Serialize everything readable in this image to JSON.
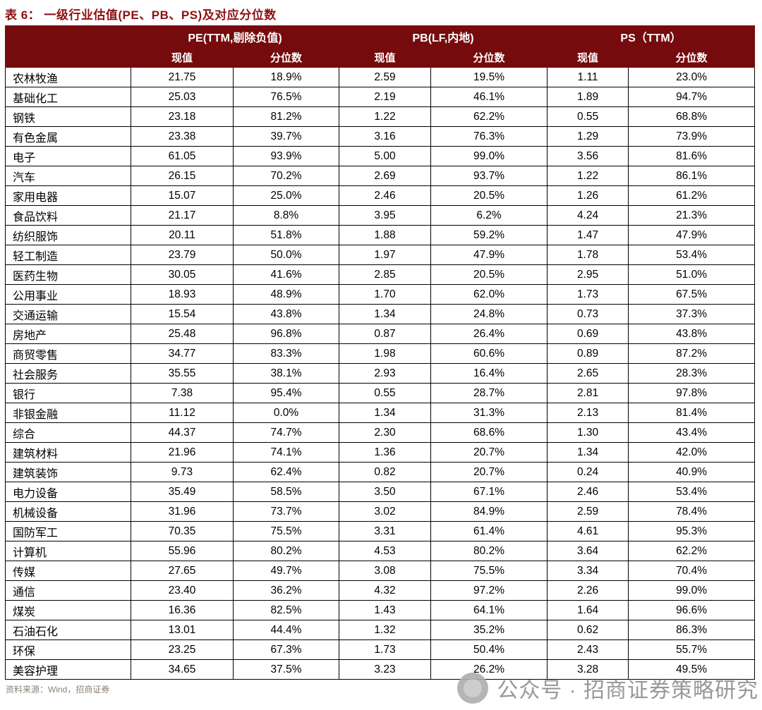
{
  "title": "表 6： 一级行业估值(PE、PB、PS)及对应分位数",
  "footer": "资料来源：Wind，招商证券",
  "watermark": "公众号 · 招商证券策略研究",
  "colors": {
    "title_red": "#8e1011",
    "header_bg": "#760b0d",
    "header_text": "#ffffff",
    "grid_border": "#000000"
  },
  "chart_data": {
    "type": "table",
    "title": "表 6： 一级行业估值(PE、PB、PS)及对应分位数",
    "group_headers": [
      "PE(TTM,剔除负值)",
      "PB(LF,内地)",
      "PS（TTM）"
    ],
    "sub_headers": [
      "现值",
      "分位数",
      "现值",
      "分位数",
      "现值",
      "分位数"
    ],
    "rows": [
      {
        "industry": "农林牧渔",
        "values": [
          "21.75",
          "18.9%",
          "2.59",
          "19.5%",
          "1.11",
          "23.0%"
        ]
      },
      {
        "industry": "基础化工",
        "values": [
          "25.03",
          "76.5%",
          "2.19",
          "46.1%",
          "1.89",
          "94.7%"
        ]
      },
      {
        "industry": "钢铁",
        "values": [
          "23.18",
          "81.2%",
          "1.22",
          "62.2%",
          "0.55",
          "68.8%"
        ]
      },
      {
        "industry": "有色金属",
        "values": [
          "23.38",
          "39.7%",
          "3.16",
          "76.3%",
          "1.29",
          "73.9%"
        ]
      },
      {
        "industry": "电子",
        "values": [
          "61.05",
          "93.9%",
          "5.00",
          "99.0%",
          "3.56",
          "81.6%"
        ]
      },
      {
        "industry": "汽车",
        "values": [
          "26.15",
          "70.2%",
          "2.69",
          "93.7%",
          "1.22",
          "86.1%"
        ]
      },
      {
        "industry": "家用电器",
        "values": [
          "15.07",
          "25.0%",
          "2.46",
          "20.5%",
          "1.26",
          "61.2%"
        ]
      },
      {
        "industry": "食品饮料",
        "values": [
          "21.17",
          "8.8%",
          "3.95",
          "6.2%",
          "4.24",
          "21.3%"
        ]
      },
      {
        "industry": "纺织服饰",
        "values": [
          "20.11",
          "51.8%",
          "1.88",
          "59.2%",
          "1.47",
          "47.9%"
        ]
      },
      {
        "industry": "轻工制造",
        "values": [
          "23.79",
          "50.0%",
          "1.97",
          "47.9%",
          "1.78",
          "53.4%"
        ]
      },
      {
        "industry": "医药生物",
        "values": [
          "30.05",
          "41.6%",
          "2.85",
          "20.5%",
          "2.95",
          "51.0%"
        ]
      },
      {
        "industry": "公用事业",
        "values": [
          "18.93",
          "48.9%",
          "1.70",
          "62.0%",
          "1.73",
          "67.5%"
        ]
      },
      {
        "industry": "交通运输",
        "values": [
          "15.54",
          "43.8%",
          "1.34",
          "24.8%",
          "0.73",
          "37.3%"
        ]
      },
      {
        "industry": "房地产",
        "values": [
          "25.48",
          "96.8%",
          "0.87",
          "26.4%",
          "0.69",
          "43.8%"
        ]
      },
      {
        "industry": "商贸零售",
        "values": [
          "34.77",
          "83.3%",
          "1.98",
          "60.6%",
          "0.89",
          "87.2%"
        ]
      },
      {
        "industry": "社会服务",
        "values": [
          "35.55",
          "38.1%",
          "2.93",
          "16.4%",
          "2.65",
          "28.3%"
        ]
      },
      {
        "industry": "银行",
        "values": [
          "7.38",
          "95.4%",
          "0.55",
          "28.7%",
          "2.81",
          "97.8%"
        ]
      },
      {
        "industry": "非银金融",
        "values": [
          "11.12",
          "0.0%",
          "1.34",
          "31.3%",
          "2.13",
          "81.4%"
        ]
      },
      {
        "industry": "综合",
        "values": [
          "44.37",
          "74.7%",
          "2.30",
          "68.6%",
          "1.30",
          "43.4%"
        ]
      },
      {
        "industry": "建筑材料",
        "values": [
          "21.96",
          "74.1%",
          "1.36",
          "20.7%",
          "1.34",
          "42.0%"
        ]
      },
      {
        "industry": "建筑装饰",
        "values": [
          "9.73",
          "62.4%",
          "0.82",
          "20.7%",
          "0.24",
          "40.9%"
        ]
      },
      {
        "industry": "电力设备",
        "values": [
          "35.49",
          "58.5%",
          "3.50",
          "67.1%",
          "2.46",
          "53.4%"
        ]
      },
      {
        "industry": "机械设备",
        "values": [
          "31.96",
          "73.7%",
          "3.02",
          "84.9%",
          "2.59",
          "78.4%"
        ]
      },
      {
        "industry": "国防军工",
        "values": [
          "70.35",
          "75.5%",
          "3.31",
          "61.4%",
          "4.61",
          "95.3%"
        ]
      },
      {
        "industry": "计算机",
        "values": [
          "55.96",
          "80.2%",
          "4.53",
          "80.2%",
          "3.64",
          "62.2%"
        ]
      },
      {
        "industry": "传媒",
        "values": [
          "27.65",
          "49.7%",
          "3.08",
          "75.5%",
          "3.34",
          "70.4%"
        ]
      },
      {
        "industry": "通信",
        "values": [
          "23.40",
          "36.2%",
          "4.32",
          "97.2%",
          "2.26",
          "99.0%"
        ]
      },
      {
        "industry": "煤炭",
        "values": [
          "16.36",
          "82.5%",
          "1.43",
          "64.1%",
          "1.64",
          "96.6%"
        ]
      },
      {
        "industry": "石油石化",
        "values": [
          "13.01",
          "44.4%",
          "1.32",
          "35.2%",
          "0.62",
          "86.3%"
        ]
      },
      {
        "industry": "环保",
        "values": [
          "23.25",
          "67.3%",
          "1.73",
          "50.4%",
          "2.43",
          "55.7%"
        ]
      },
      {
        "industry": "美容护理",
        "values": [
          "34.65",
          "37.5%",
          "3.23",
          "26.2%",
          "3.28",
          "49.5%"
        ]
      }
    ]
  }
}
